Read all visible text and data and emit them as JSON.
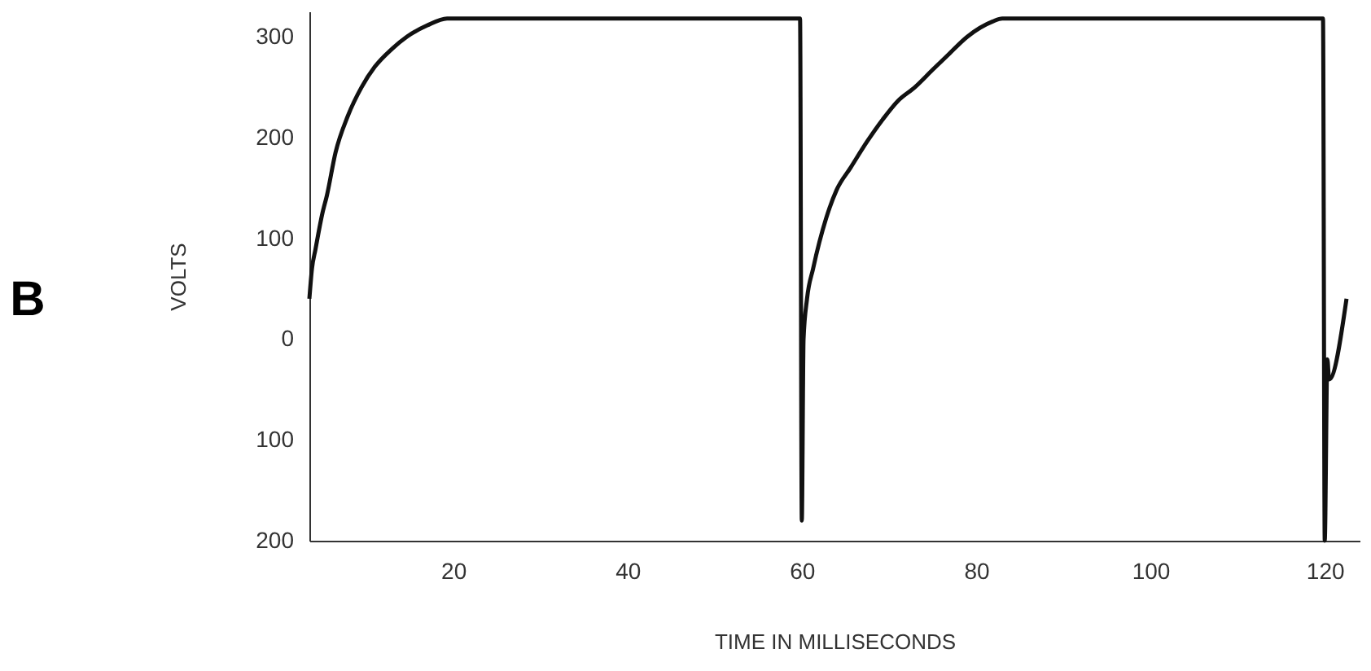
{
  "chart_data": {
    "type": "line",
    "title": "B",
    "xlabel": "TIME IN MILLISECONDS",
    "ylabel": "VOLTS",
    "x": [
      3.5,
      3.8,
      4.2,
      5,
      5.5,
      6.5,
      7.9,
      9.5,
      11,
      13,
      14.7,
      17,
      19.3,
      59.8,
      60,
      60.2,
      60.6,
      61.3,
      62.8,
      64,
      65.6,
      67.5,
      69.3,
      71,
      73,
      75,
      76.8,
      79,
      81.9,
      83,
      119.8,
      120,
      120.3,
      120.5,
      122.5
    ],
    "series": [
      {
        "color": "#111111",
        "values": [
          40,
          70,
          89,
          125,
          142,
          185,
          221,
          250,
          270,
          288,
          300,
          311,
          318,
          318,
          -180,
          0,
          40,
          70,
          120,
          148,
          170,
          196,
          218,
          236,
          250,
          267,
          282,
          300,
          315,
          318,
          318,
          -200,
          -20,
          -40,
          40
        ]
      }
    ],
    "xlim": [
      3.5,
      124
    ],
    "xticks": [
      20,
      40,
      60,
      80,
      100,
      120
    ],
    "ylim": [
      -200,
      325
    ],
    "yticks": [
      300,
      200,
      100,
      0,
      {
        "value": -100,
        "label": "100"
      },
      {
        "value": -200,
        "label": "200"
      }
    ],
    "grid": false,
    "marker": "none",
    "line_style": "solid"
  }
}
